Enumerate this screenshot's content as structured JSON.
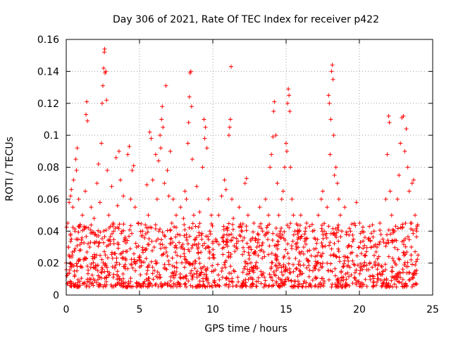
{
  "chart_data": {
    "type": "scatter",
    "title": "Day 306 of 2021, Rate Of TEC Index for receiver p422",
    "xlabel": "GPS time / hours",
    "ylabel": "ROTI / TECUs",
    "xlim": [
      0,
      25
    ],
    "ylim": [
      0,
      0.16
    ],
    "xticks": [
      0,
      5,
      10,
      15,
      20,
      25
    ],
    "xtick_labels": [
      "0",
      "5",
      "10",
      "15",
      "20",
      "25"
    ],
    "yticks": [
      0,
      0.02,
      0.04,
      0.06,
      0.08,
      0.1,
      0.12,
      0.14,
      0.16
    ],
    "ytick_labels": [
      "0",
      "0.02",
      "0.04",
      "0.06",
      "0.08",
      "0.1",
      "0.12",
      "0.14",
      "0.16"
    ],
    "grid": true,
    "marker": "+",
    "color": "#ff0000",
    "series": [
      {
        "name": "ROTI",
        "points": [
          [
            0.05,
            0.012
          ],
          [
            0.1,
            0.045
          ],
          [
            0.15,
            0.03
          ],
          [
            0.2,
            0.058
          ],
          [
            0.25,
            0.02
          ],
          [
            0.3,
            0.062
          ],
          [
            0.35,
            0.066
          ],
          [
            0.4,
            0.025
          ],
          [
            0.45,
            0.055
          ],
          [
            0.5,
            0.072
          ],
          [
            0.55,
            0.015
          ],
          [
            0.6,
            0.04
          ],
          [
            0.65,
            0.085
          ],
          [
            0.7,
            0.078
          ],
          [
            0.75,
            0.092
          ],
          [
            0.8,
            0.035
          ],
          [
            0.85,
            0.06
          ],
          [
            0.9,
            0.028
          ],
          [
            0.95,
            0.044
          ],
          [
            1.0,
            0.018
          ],
          [
            1.1,
            0.05
          ],
          [
            1.2,
            0.022
          ],
          [
            1.3,
            0.065
          ],
          [
            1.35,
            0.113
          ],
          [
            1.4,
            0.121
          ],
          [
            1.45,
            0.109
          ],
          [
            1.5,
            0.042
          ],
          [
            1.6,
            0.03
          ],
          [
            1.7,
            0.055
          ],
          [
            1.8,
            0.024
          ],
          [
            1.9,
            0.048
          ],
          [
            2.0,
            0.038
          ],
          [
            2.1,
            0.07
          ],
          [
            2.2,
            0.082
          ],
          [
            2.3,
            0.058
          ],
          [
            2.4,
            0.095
          ],
          [
            2.45,
            0.12
          ],
          [
            2.5,
            0.131
          ],
          [
            2.55,
            0.142
          ],
          [
            2.6,
            0.152
          ],
          [
            2.62,
            0.154
          ],
          [
            2.65,
            0.139
          ],
          [
            2.7,
            0.14
          ],
          [
            2.75,
            0.122
          ],
          [
            2.8,
            0.078
          ],
          [
            2.9,
            0.05
          ],
          [
            3.0,
            0.032
          ],
          [
            3.1,
            0.068
          ],
          [
            3.2,
            0.045
          ],
          [
            3.3,
            0.026
          ],
          [
            3.4,
            0.086
          ],
          [
            3.5,
            0.056
          ],
          [
            3.6,
            0.09
          ],
          [
            3.7,
            0.072
          ],
          [
            3.8,
            0.04
          ],
          [
            3.9,
            0.062
          ],
          [
            4.0,
            0.035
          ],
          [
            4.2,
            0.088
          ],
          [
            4.3,
            0.093
          ],
          [
            4.4,
            0.06
          ],
          [
            4.5,
            0.078
          ],
          [
            4.6,
            0.081
          ],
          [
            4.7,
            0.055
          ],
          [
            4.8,
            0.03
          ],
          [
            4.9,
            0.045
          ],
          [
            5.0,
            0.022
          ],
          [
            5.2,
            0.04
          ],
          [
            5.4,
            0.028
          ],
          [
            5.5,
            0.069
          ],
          [
            5.6,
            0.05
          ],
          [
            5.7,
            0.102
          ],
          [
            5.8,
            0.098
          ],
          [
            5.9,
            0.072
          ],
          [
            6.0,
            0.03
          ],
          [
            6.1,
            0.088
          ],
          [
            6.2,
            0.06
          ],
          [
            6.3,
            0.084
          ],
          [
            6.4,
            0.1
          ],
          [
            6.45,
            0.092
          ],
          [
            6.5,
            0.11
          ],
          [
            6.55,
            0.118
          ],
          [
            6.6,
            0.105
          ],
          [
            6.7,
            0.07
          ],
          [
            6.8,
            0.131
          ],
          [
            6.9,
            0.078
          ],
          [
            7.0,
            0.062
          ],
          [
            7.1,
            0.09
          ],
          [
            7.2,
            0.045
          ],
          [
            7.3,
            0.06
          ],
          [
            7.4,
            0.03
          ],
          [
            7.5,
            0.05
          ],
          [
            7.6,
            0.038
          ],
          [
            7.8,
            0.055
          ],
          [
            8.0,
            0.048
          ],
          [
            8.1,
            0.065
          ],
          [
            8.2,
            0.06
          ],
          [
            8.3,
            0.095
          ],
          [
            8.35,
            0.108
          ],
          [
            8.4,
            0.124
          ],
          [
            8.45,
            0.139
          ],
          [
            8.5,
            0.14
          ],
          [
            8.55,
            0.118
          ],
          [
            8.6,
            0.085
          ],
          [
            8.7,
            0.05
          ],
          [
            8.8,
            0.035
          ],
          [
            8.9,
            0.068
          ],
          [
            9.0,
            0.03
          ],
          [
            9.1,
            0.052
          ],
          [
            9.3,
            0.08
          ],
          [
            9.4,
            0.11
          ],
          [
            9.45,
            0.098
          ],
          [
            9.5,
            0.105
          ],
          [
            9.6,
            0.092
          ],
          [
            9.7,
            0.06
          ],
          [
            9.8,
            0.04
          ],
          [
            9.9,
            0.05
          ],
          [
            10.0,
            0.025
          ],
          [
            10.2,
            0.035
          ],
          [
            10.4,
            0.05
          ],
          [
            10.6,
            0.062
          ],
          [
            10.8,
            0.072
          ],
          [
            10.9,
            0.066
          ],
          [
            11.0,
            0.042
          ],
          [
            11.1,
            0.1
          ],
          [
            11.15,
            0.105
          ],
          [
            11.2,
            0.11
          ],
          [
            11.25,
            0.143
          ],
          [
            11.3,
            0.06
          ],
          [
            11.4,
            0.048
          ],
          [
            11.6,
            0.03
          ],
          [
            11.8,
            0.055
          ],
          [
            12.0,
            0.04
          ],
          [
            12.2,
            0.07
          ],
          [
            12.3,
            0.073
          ],
          [
            12.4,
            0.05
          ],
          [
            12.6,
            0.035
          ],
          [
            12.8,
            0.045
          ],
          [
            13.0,
            0.03
          ],
          [
            13.2,
            0.055
          ],
          [
            13.4,
            0.04
          ],
          [
            13.6,
            0.06
          ],
          [
            13.8,
            0.05
          ],
          [
            13.9,
            0.08
          ],
          [
            14.0,
            0.088
          ],
          [
            14.1,
            0.099
          ],
          [
            14.15,
            0.115
          ],
          [
            14.2,
            0.121
          ],
          [
            14.3,
            0.1
          ],
          [
            14.4,
            0.07
          ],
          [
            14.5,
            0.05
          ],
          [
            14.6,
            0.04
          ],
          [
            14.7,
            0.06
          ],
          [
            14.8,
            0.065
          ],
          [
            14.9,
            0.08
          ],
          [
            15.0,
            0.095
          ],
          [
            15.05,
            0.09
          ],
          [
            15.1,
            0.12
          ],
          [
            15.15,
            0.129
          ],
          [
            15.2,
            0.125
          ],
          [
            15.25,
            0.115
          ],
          [
            15.3,
            0.08
          ],
          [
            15.4,
            0.06
          ],
          [
            15.5,
            0.05
          ],
          [
            15.6,
            0.04
          ],
          [
            15.8,
            0.035
          ],
          [
            16.0,
            0.05
          ],
          [
            16.2,
            0.03
          ],
          [
            16.4,
            0.045
          ],
          [
            16.6,
            0.028
          ],
          [
            16.8,
            0.04
          ],
          [
            17.0,
            0.035
          ],
          [
            17.2,
            0.05
          ],
          [
            17.4,
            0.06
          ],
          [
            17.5,
            0.065
          ],
          [
            17.6,
            0.04
          ],
          [
            17.8,
            0.055
          ],
          [
            17.9,
            0.125
          ],
          [
            17.95,
            0.12
          ],
          [
            18.0,
            0.088
          ],
          [
            18.05,
            0.11
          ],
          [
            18.1,
            0.14
          ],
          [
            18.15,
            0.144
          ],
          [
            18.2,
            0.135
          ],
          [
            18.25,
            0.1
          ],
          [
            18.3,
            0.075
          ],
          [
            18.4,
            0.08
          ],
          [
            18.5,
            0.07
          ],
          [
            18.6,
            0.06
          ],
          [
            18.7,
            0.05
          ],
          [
            18.8,
            0.04
          ],
          [
            19.0,
            0.055
          ],
          [
            19.2,
            0.03
          ],
          [
            19.4,
            0.04
          ],
          [
            19.6,
            0.035
          ],
          [
            19.8,
            0.058
          ],
          [
            20.0,
            0.03
          ],
          [
            20.2,
            0.04
          ],
          [
            20.4,
            0.025
          ],
          [
            20.6,
            0.035
          ],
          [
            20.8,
            0.03
          ],
          [
            21.0,
            0.04
          ],
          [
            21.2,
            0.03
          ],
          [
            21.4,
            0.045
          ],
          [
            21.6,
            0.035
          ],
          [
            21.8,
            0.06
          ],
          [
            21.9,
            0.088
          ],
          [
            22.0,
            0.112
          ],
          [
            22.05,
            0.108
          ],
          [
            22.1,
            0.065
          ],
          [
            22.2,
            0.05
          ],
          [
            22.4,
            0.04
          ],
          [
            22.6,
            0.06
          ],
          [
            22.7,
            0.075
          ],
          [
            22.8,
            0.095
          ],
          [
            22.9,
            0.111
          ],
          [
            23.0,
            0.112
          ],
          [
            23.1,
            0.09
          ],
          [
            23.2,
            0.104
          ],
          [
            23.3,
            0.08
          ],
          [
            23.4,
            0.065
          ],
          [
            23.5,
            0.045
          ],
          [
            23.6,
            0.07
          ],
          [
            23.7,
            0.072
          ],
          [
            23.8,
            0.05
          ],
          [
            23.9,
            0.04
          ],
          [
            24.0,
            0.025
          ]
        ]
      }
    ],
    "background_noise": {
      "x_range": [
        0,
        24
      ],
      "typical_range": [
        0.005,
        0.03
      ],
      "count": 1400
    }
  }
}
